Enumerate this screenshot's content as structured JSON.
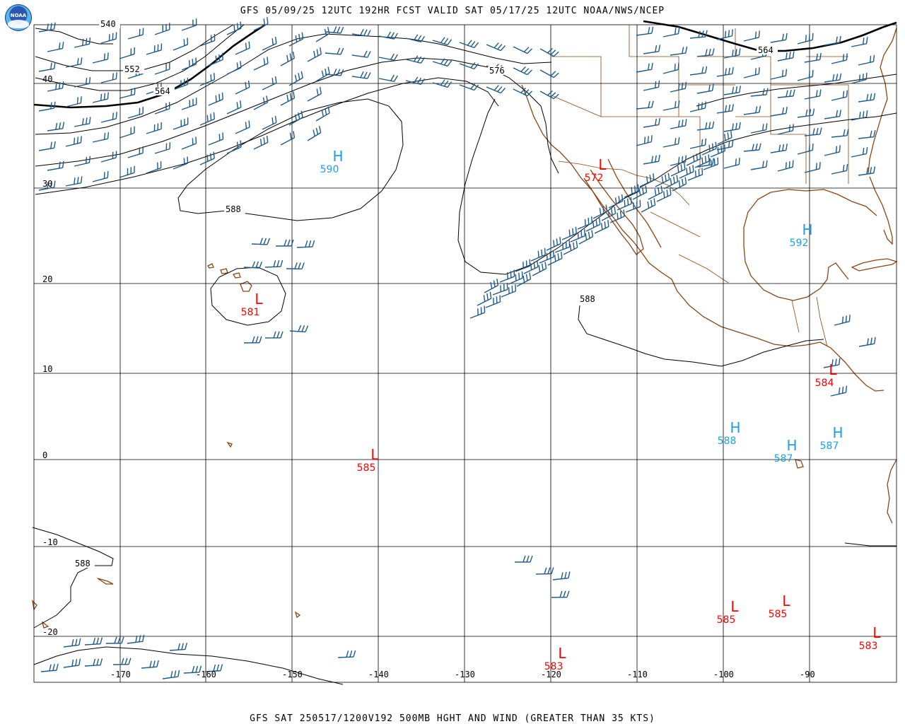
{
  "header": {
    "title": "GFS 05/09/25 12UTC 192HR FCST VALID SAT 05/17/25 12UTC NOAA/NWS/NCEP",
    "footer": "GFS SAT 250517/1200V192 500MB HGHT AND WIND (GREATER THAN 35 KTS)",
    "logo_text": "NOAA"
  },
  "colors": {
    "grid": "#000000",
    "coast": "#8b4513",
    "border": "#8b4513",
    "contour": "#000000",
    "wind": "#1e5a8a",
    "high": "#1ea0e6",
    "low": "#ff0000"
  },
  "axes": {
    "lon_labels": [
      "-170",
      "-160",
      "-150",
      "-140",
      "-130",
      "-120",
      "-110",
      "-100",
      "-90"
    ],
    "lat_labels": [
      "40",
      "30",
      "20",
      "10",
      "0",
      "-10",
      "-20"
    ]
  },
  "contour_labels": [
    "540",
    "552",
    "564",
    "576",
    "588",
    "588",
    "588",
    "564"
  ],
  "pressure_centers": [
    {
      "type": "H",
      "value": "590"
    },
    {
      "type": "L",
      "value": "581"
    },
    {
      "type": "L",
      "value": "572"
    },
    {
      "type": "H",
      "value": "592"
    },
    {
      "type": "L",
      "value": "584"
    },
    {
      "type": "H",
      "value": "588"
    },
    {
      "type": "H",
      "value": "587"
    },
    {
      "type": "H",
      "value": "587"
    },
    {
      "type": "L",
      "value": "585"
    },
    {
      "type": "L",
      "value": "585"
    },
    {
      "type": "L",
      "value": "585"
    },
    {
      "type": "L",
      "value": "583"
    },
    {
      "type": "L",
      "value": "583"
    }
  ]
}
